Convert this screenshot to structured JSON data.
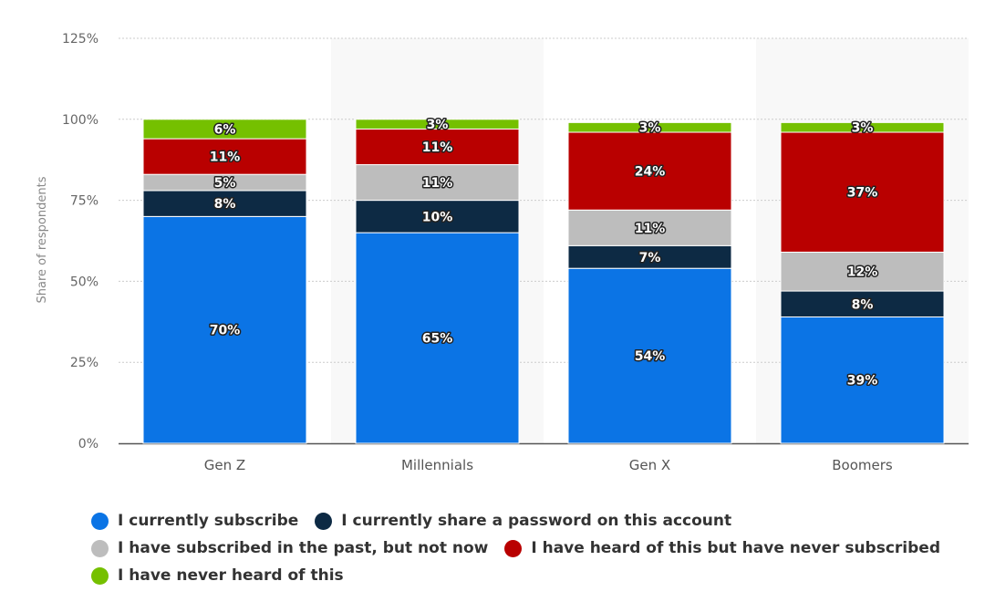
{
  "chart_data": {
    "type": "bar",
    "stacked": true,
    "title": "",
    "xlabel": "",
    "ylabel": "Share of respondents",
    "ylim": [
      0,
      125
    ],
    "yticks": [
      "0%",
      "25%",
      "50%",
      "75%",
      "100%",
      "125%"
    ],
    "ytick_values": [
      0,
      25,
      50,
      75,
      100,
      125
    ],
    "grid": true,
    "legend_position": "bottom-left",
    "categories": [
      "Gen Z",
      "Millennials",
      "Gen X",
      "Boomers"
    ],
    "series": [
      {
        "name": "I currently subscribe",
        "color": "#0b74e5",
        "values": [
          70,
          65,
          54,
          39
        ]
      },
      {
        "name": "I currently share a password on this account",
        "color": "#0d2a44",
        "values": [
          8,
          10,
          7,
          8
        ]
      },
      {
        "name": "I have subscribed in the past, but not now",
        "color": "#bdbdbd",
        "values": [
          5,
          11,
          11,
          12
        ]
      },
      {
        "name": "I have heard of this but have never subscribed",
        "color": "#b90000",
        "values": [
          11,
          11,
          24,
          37
        ]
      },
      {
        "name": "I have never heard of this",
        "color": "#75c000",
        "values": [
          6,
          3,
          3,
          3
        ]
      }
    ]
  }
}
